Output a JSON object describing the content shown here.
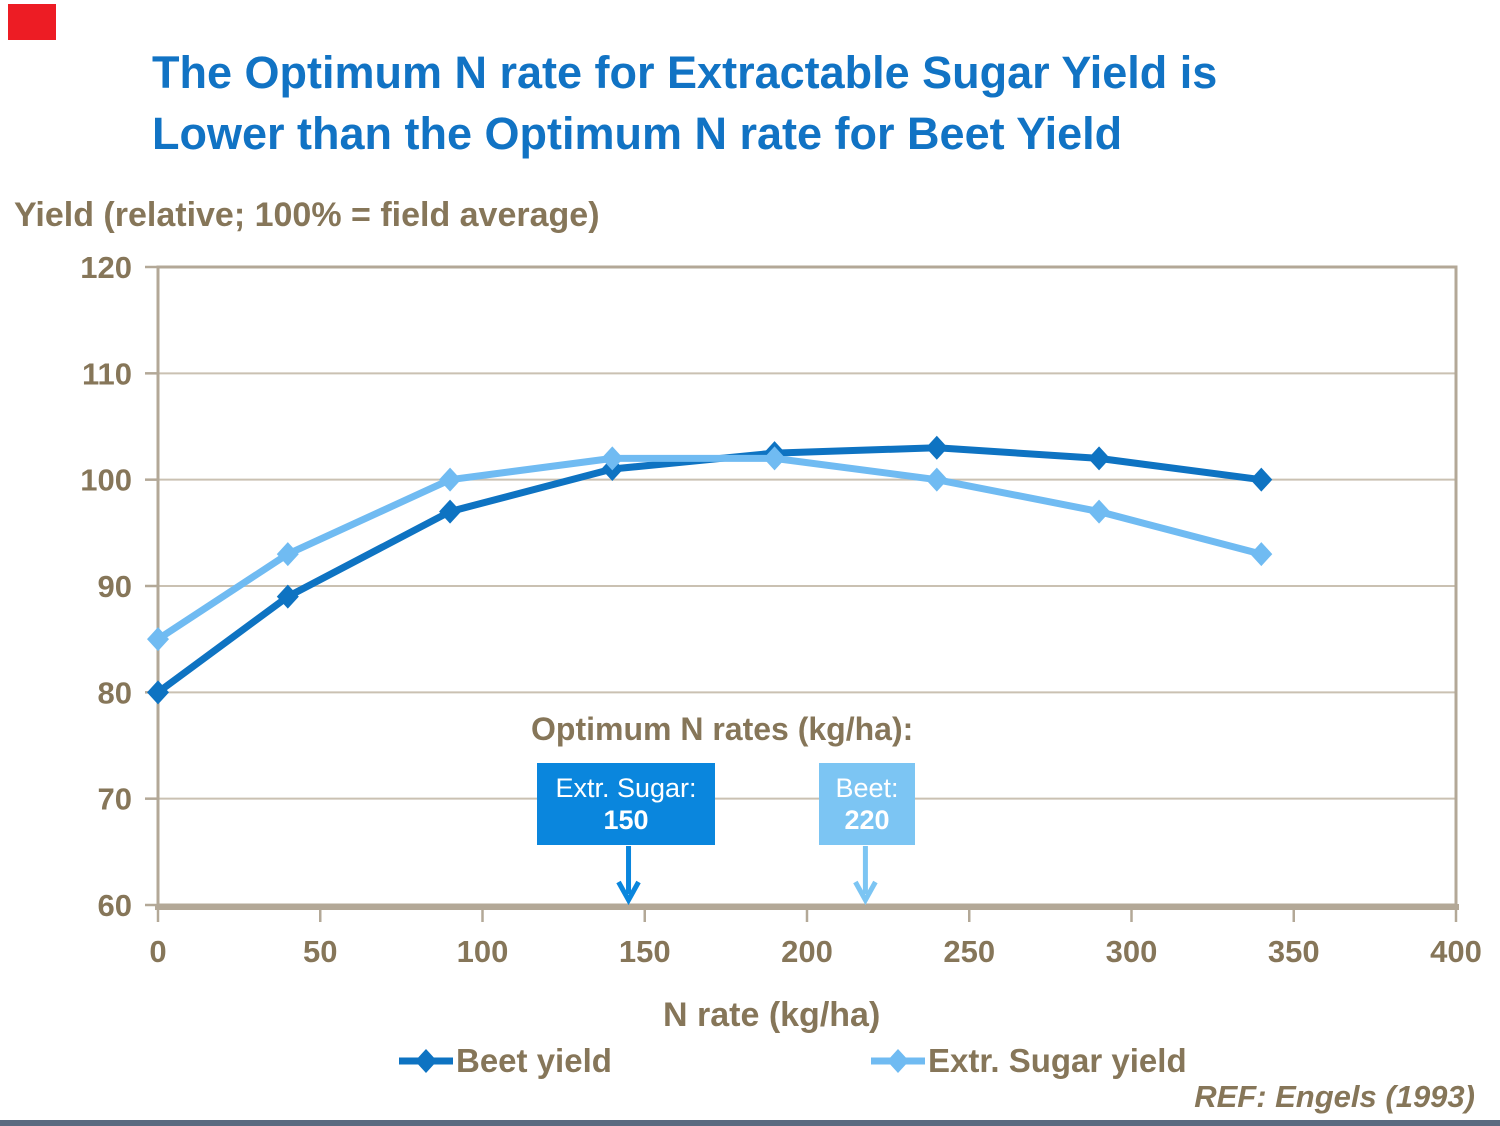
{
  "slide": {
    "title_line1": "The Optimum N rate for Extractable Sugar Yield is",
    "title_line2": "Lower than the Optimum N rate for Beet Yield",
    "reference": "REF: Engels (1993)"
  },
  "chart_data": {
    "type": "line",
    "ylabel": "Yield (relative; 100% = field average)",
    "xlabel": "N rate (kg/ha)",
    "x": [
      0,
      40,
      90,
      140,
      190,
      240,
      290,
      340
    ],
    "series": [
      {
        "name": "Beet yield",
        "color": "#0e73c2",
        "marker": "diamond",
        "values": [
          80,
          89,
          97,
          101,
          102.5,
          103,
          102,
          100
        ]
      },
      {
        "name": "Extr. Sugar yield",
        "color": "#70bbf2",
        "marker": "diamond",
        "values": [
          85,
          93,
          100,
          102,
          102,
          100,
          97,
          93
        ]
      }
    ],
    "xlim": [
      0,
      400
    ],
    "ylim": [
      60,
      120
    ],
    "x_ticks": [
      0,
      50,
      100,
      150,
      200,
      250,
      300,
      350,
      400
    ],
    "y_ticks": [
      60,
      70,
      80,
      90,
      100,
      110,
      120
    ],
    "grid": "horizontal",
    "legend_position": "bottom",
    "annotation": {
      "header": "Optimum N rates (kg/ha):",
      "boxes": [
        {
          "label": "Extr. Sugar:",
          "value": "150",
          "pointer_x": 145,
          "color": "#0a86dd",
          "text_color": "#ffffff"
        },
        {
          "label": "Beet:",
          "value": "220",
          "pointer_x": 218,
          "color": "#7cc5f3",
          "text_color": "#ffffff"
        }
      ]
    }
  },
  "colors": {
    "title": "#1173c4",
    "brown": "#867659",
    "axis": "#b3a897",
    "grid": "#cac1b2",
    "footer_bar": "#5a6b80",
    "corner_red": "#ed1c24"
  }
}
